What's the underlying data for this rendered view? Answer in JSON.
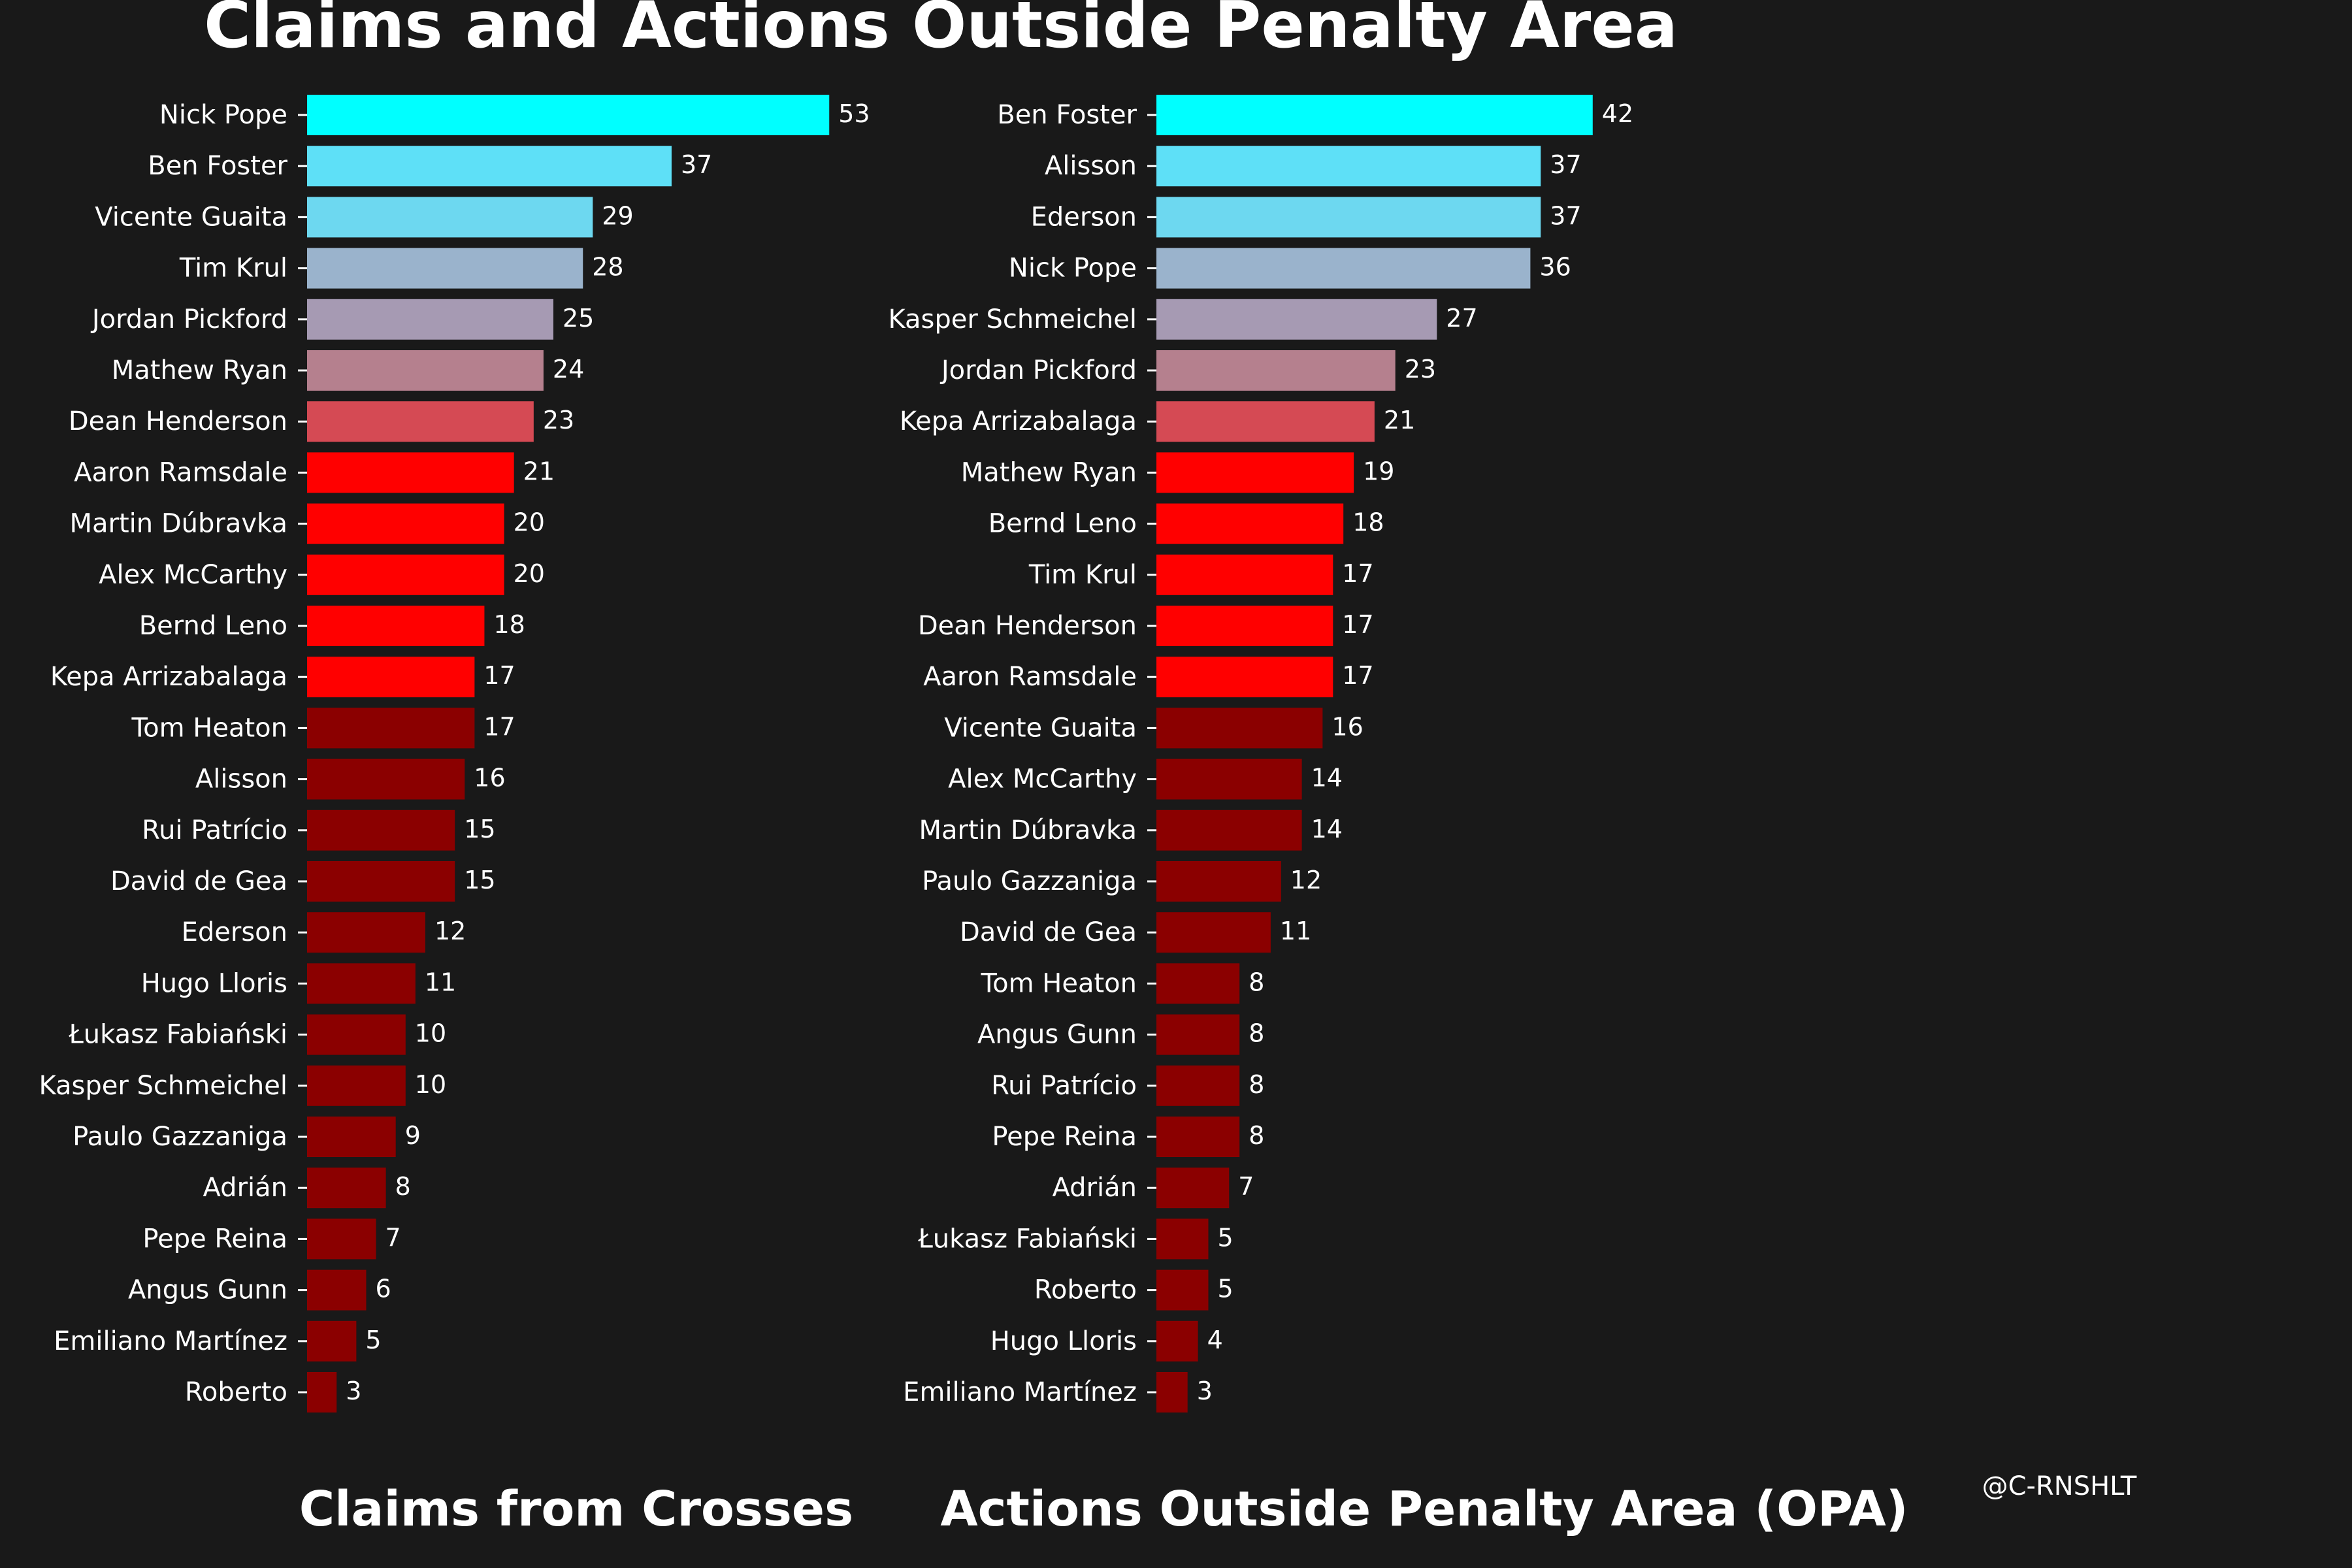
{
  "title": "Claims and Actions Outside Penalty Area",
  "credit": "@C-RNSHLT",
  "chart_data": [
    {
      "type": "bar",
      "orientation": "horizontal",
      "xlabel": "Claims from Crosses",
      "categories": [
        "Nick Pope",
        "Ben Foster",
        "Vicente Guaita",
        "Tim Krul",
        "Jordan Pickford",
        "Mathew Ryan",
        "Dean Henderson",
        "Aaron Ramsdale",
        "Martin Dúbravka",
        "Alex McCarthy",
        "Bernd Leno",
        "Kepa Arrizabalaga",
        "Tom Heaton",
        "Alisson",
        "Rui Patrício",
        "David de Gea",
        "Ederson",
        "Hugo Lloris",
        "Łukasz Fabiański",
        "Kasper Schmeichel",
        "Paulo Gazzaniga",
        "Adrián",
        "Pepe Reina",
        "Angus Gunn",
        "Emiliano Martínez",
        "Roberto"
      ],
      "values": [
        53,
        37,
        29,
        28,
        25,
        24,
        23,
        21,
        20,
        20,
        18,
        17,
        17,
        16,
        15,
        15,
        12,
        11,
        10,
        10,
        9,
        8,
        7,
        6,
        5,
        3
      ],
      "colors": [
        "#00ffff",
        "#5ee0f7",
        "#6dd8f0",
        "#9ab3cc",
        "#a69ab3",
        "#b5808e",
        "#d54a54",
        "#ff0000",
        "#ff0000",
        "#ff0000",
        "#ff0000",
        "#ff0000",
        "#8b0000",
        "#8b0000",
        "#8b0000",
        "#8b0000",
        "#8b0000",
        "#8b0000",
        "#8b0000",
        "#8b0000",
        "#8b0000",
        "#8b0000",
        "#8b0000",
        "#8b0000",
        "#8b0000",
        "#8b0000"
      ],
      "grid": false,
      "axes_visible": false
    },
    {
      "type": "bar",
      "orientation": "horizontal",
      "xlabel": "Actions Outside Penalty Area (OPA)",
      "categories": [
        "Ben Foster",
        "Alisson",
        "Ederson",
        "Nick Pope",
        "Kasper Schmeichel",
        "Jordan Pickford",
        "Kepa Arrizabalaga",
        "Mathew Ryan",
        "Bernd Leno",
        "Tim Krul",
        "Dean Henderson",
        "Aaron Ramsdale",
        "Vicente Guaita",
        "Alex McCarthy",
        "Martin Dúbravka",
        "Paulo Gazzaniga",
        "David de Gea",
        "Tom Heaton",
        "Angus Gunn",
        "Rui Patrício",
        "Pepe Reina",
        "Adrián",
        "Łukasz Fabiański",
        "Roberto",
        "Hugo Lloris",
        "Emiliano Martínez"
      ],
      "values": [
        42,
        37,
        37,
        36,
        27,
        23,
        21,
        19,
        18,
        17,
        17,
        17,
        16,
        14,
        14,
        12,
        11,
        8,
        8,
        8,
        8,
        7,
        5,
        5,
        4,
        3
      ],
      "colors": [
        "#00ffff",
        "#5ee0f7",
        "#6dd8f0",
        "#9ab3cc",
        "#a69ab3",
        "#b5808e",
        "#d54a54",
        "#ff0000",
        "#ff0000",
        "#ff0000",
        "#ff0000",
        "#ff0000",
        "#8b0000",
        "#8b0000",
        "#8b0000",
        "#8b0000",
        "#8b0000",
        "#8b0000",
        "#8b0000",
        "#8b0000",
        "#8b0000",
        "#8b0000",
        "#8b0000",
        "#8b0000",
        "#8b0000",
        "#8b0000"
      ],
      "grid": false,
      "axes_visible": false
    }
  ]
}
